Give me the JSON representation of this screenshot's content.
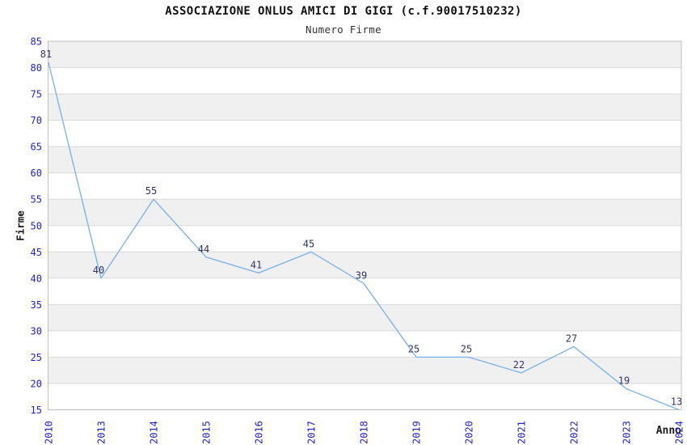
{
  "chart_data": {
    "type": "line",
    "title": "ASSOCIAZIONE ONLUS AMICI DI GIGI (c.f.90017510232)",
    "subtitle": "Numero Firme",
    "xlabel": "Anno",
    "ylabel": "Firme",
    "categories": [
      "2010",
      "2013",
      "2014",
      "2015",
      "2016",
      "2017",
      "2018",
      "2019",
      "2020",
      "2021",
      "2022",
      "2023",
      "2024"
    ],
    "values": [
      81,
      40,
      55,
      44,
      41,
      45,
      39,
      25,
      25,
      22,
      27,
      19,
      13
    ],
    "ylim": [
      15,
      85
    ],
    "ytick_step": 5,
    "yticks": [
      15,
      20,
      25,
      30,
      35,
      40,
      45,
      50,
      55,
      60,
      65,
      70,
      75,
      80,
      85
    ],
    "grid": "horizontal-bands",
    "legend": "none",
    "data_labels_shown": true,
    "colors": {
      "line": "#80b4e8",
      "data_label": "#333366",
      "tick_label": "#2323cc",
      "title": "#111111",
      "subtitle": "#333333",
      "axis_title": "#1a1a1a",
      "band": "#f0f0f0",
      "gridline": "#d9d9d9",
      "border": "#c0c0c0",
      "background": "#ffffff"
    }
  }
}
